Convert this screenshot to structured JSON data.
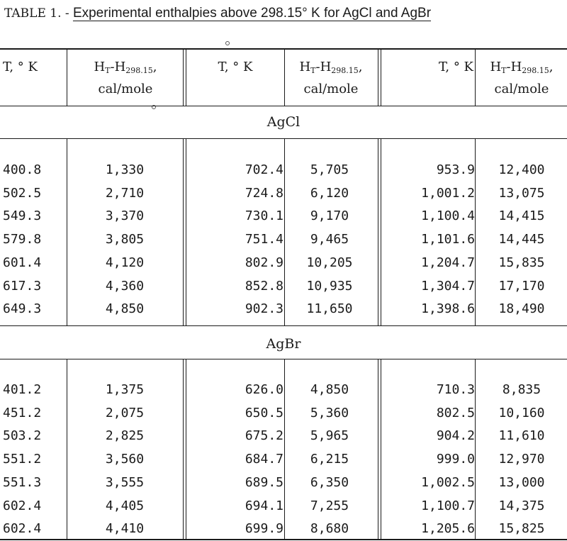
{
  "title": {
    "prefix": "TABLE 1. -",
    "caption": "Experimental enthalpies above 298.15° K for AgCl and AgBr"
  },
  "headers": [
    {
      "line1": "T, ° K",
      "line2": ""
    },
    {
      "line1": "H",
      "sub1": "T",
      "mid": "-H",
      "sub2": "298.15",
      "tail": ",",
      "line2": "cal/mole"
    },
    {
      "line1": "T, ° K",
      "line2": ""
    },
    {
      "line1": "H",
      "sub1": "T",
      "mid": "-H",
      "sub2": "298.15",
      "tail": ",",
      "line2": "cal/mole"
    },
    {
      "line1": "T, ° K",
      "line2": ""
    },
    {
      "line1": "H",
      "sub1": "T",
      "mid": "-H",
      "sub2": "298.15",
      "tail": ",",
      "line2": "cal/mole"
    }
  ],
  "sections": [
    {
      "name": "AgCl",
      "rows": [
        [
          "400.8",
          "1,330",
          "702.4",
          "5,705",
          "953.9",
          "12,400"
        ],
        [
          "502.5",
          "2,710",
          "724.8",
          "6,120",
          "1,001.2",
          "13,075"
        ],
        [
          "549.3",
          "3,370",
          "730.1",
          "9,170",
          "1,100.4",
          "14,415"
        ],
        [
          "579.8",
          "3,805",
          "751.4",
          "9,465",
          "1,101.6",
          "14,445"
        ],
        [
          "601.4",
          "4,120",
          "802.9",
          "10,205",
          "1,204.7",
          "15,835"
        ],
        [
          "617.3",
          "4,360",
          "852.8",
          "10,935",
          "1,304.7",
          "17,170"
        ],
        [
          "649.3",
          "4,850",
          "902.3",
          "11,650",
          "1,398.6",
          "18,490"
        ]
      ]
    },
    {
      "name": "AgBr",
      "rows": [
        [
          "401.2",
          "1,375",
          "626.0",
          "4,850",
          "710.3",
          "8,835"
        ],
        [
          "451.2",
          "2,075",
          "650.5",
          "5,360",
          "802.5",
          "10,160"
        ],
        [
          "503.2",
          "2,825",
          "675.2",
          "5,965",
          "904.2",
          "11,610"
        ],
        [
          "551.2",
          "3,560",
          "684.7",
          "6,215",
          "999.0",
          "12,970"
        ],
        [
          "551.3",
          "3,555",
          "689.5",
          "6,350",
          "1,002.5",
          "13,000"
        ],
        [
          "602.4",
          "4,405",
          "694.1",
          "7,255",
          "1,100.7",
          "14,375"
        ],
        [
          "602.4",
          "4,410",
          "699.9",
          "8,680",
          "1,205.6",
          "15,825"
        ]
      ]
    }
  ]
}
